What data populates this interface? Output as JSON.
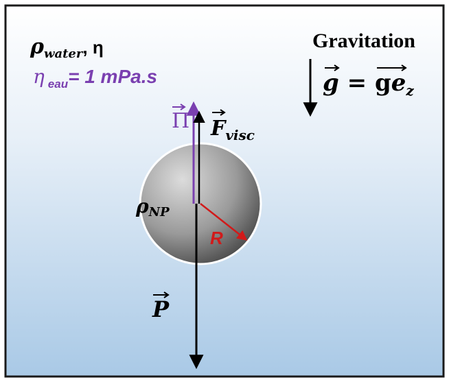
{
  "fluid": {
    "density_symbol": "ρ",
    "density_subscript": "water",
    "viscosity_symbol": ", η",
    "viscosity_value_symbol": "η",
    "viscosity_value_subscript": "eau",
    "viscosity_value_text": "= 1 mPa.s"
  },
  "gravitation": {
    "title": "Gravitation",
    "vector_g": "g",
    "equals": " = g",
    "vector_ez": "e",
    "ez_subscript": "z"
  },
  "particle": {
    "density_symbol": "ρ",
    "density_subscript": "NP",
    "radius_label": "R"
  },
  "forces": {
    "archimedes_symbol": "Π",
    "viscous_symbol": "F",
    "viscous_subscript": "visc",
    "weight_symbol": "P"
  },
  "colors": {
    "background_top": "#ffffff",
    "background_bottom": "#a9c9e6",
    "frame": "#1a1a1a",
    "sphere_light": "#dcdcdc",
    "sphere_dark": "#4d4d4d",
    "purple": "#7a3fb0",
    "red": "#d11a1a",
    "black": "#000000"
  }
}
